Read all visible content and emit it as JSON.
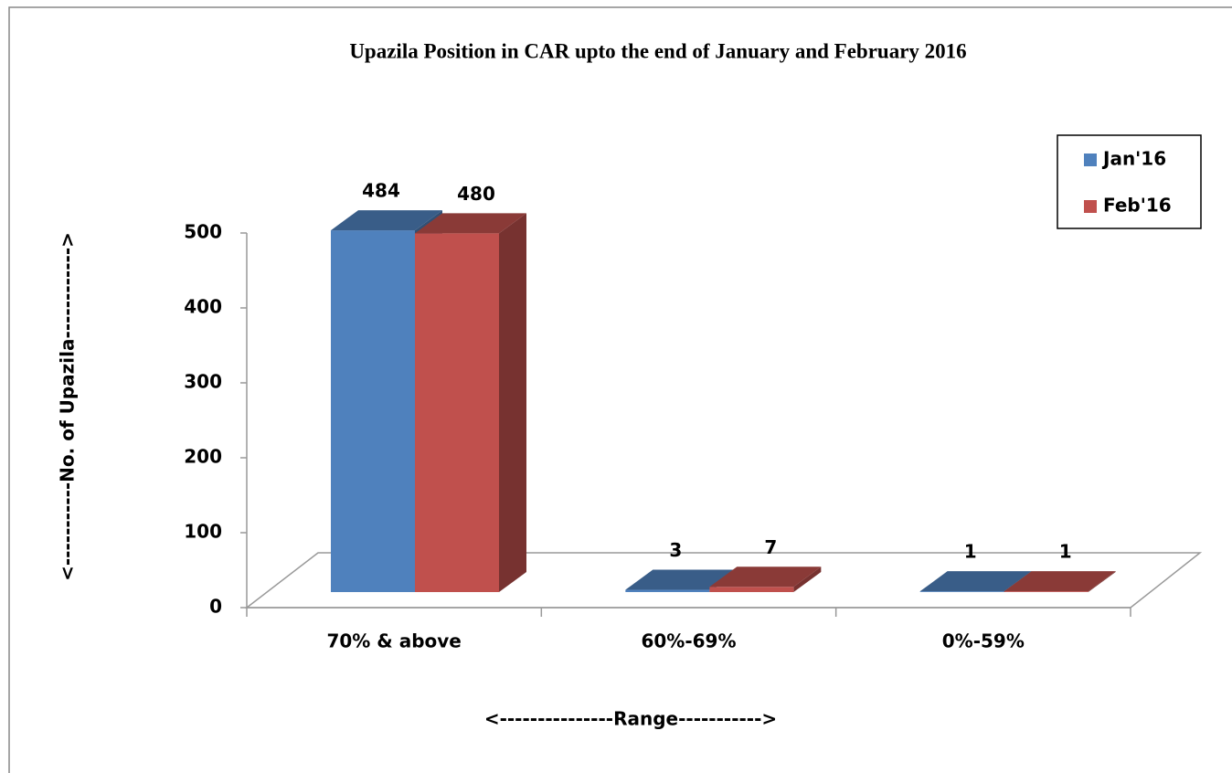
{
  "chart_data": {
    "type": "bar3d",
    "title": "Upazila Position in CAR upto the end of  January and February 2016",
    "x_label": "<---------------Range----------->",
    "y_label": "<-----------No. of Upazila------------>",
    "categories": [
      "70% & above",
      "60%-69%",
      "0%-59%"
    ],
    "series": [
      {
        "name": "Jan'16",
        "color": "#4f81bd",
        "values": [
          484,
          3,
          1
        ]
      },
      {
        "name": "Feb'16",
        "color": "#c0504d",
        "values": [
          480,
          7,
          1
        ]
      }
    ],
    "ylim": [
      0,
      500
    ],
    "yticks": [
      0,
      100,
      200,
      300,
      400,
      500
    ],
    "legend": "upper right"
  }
}
